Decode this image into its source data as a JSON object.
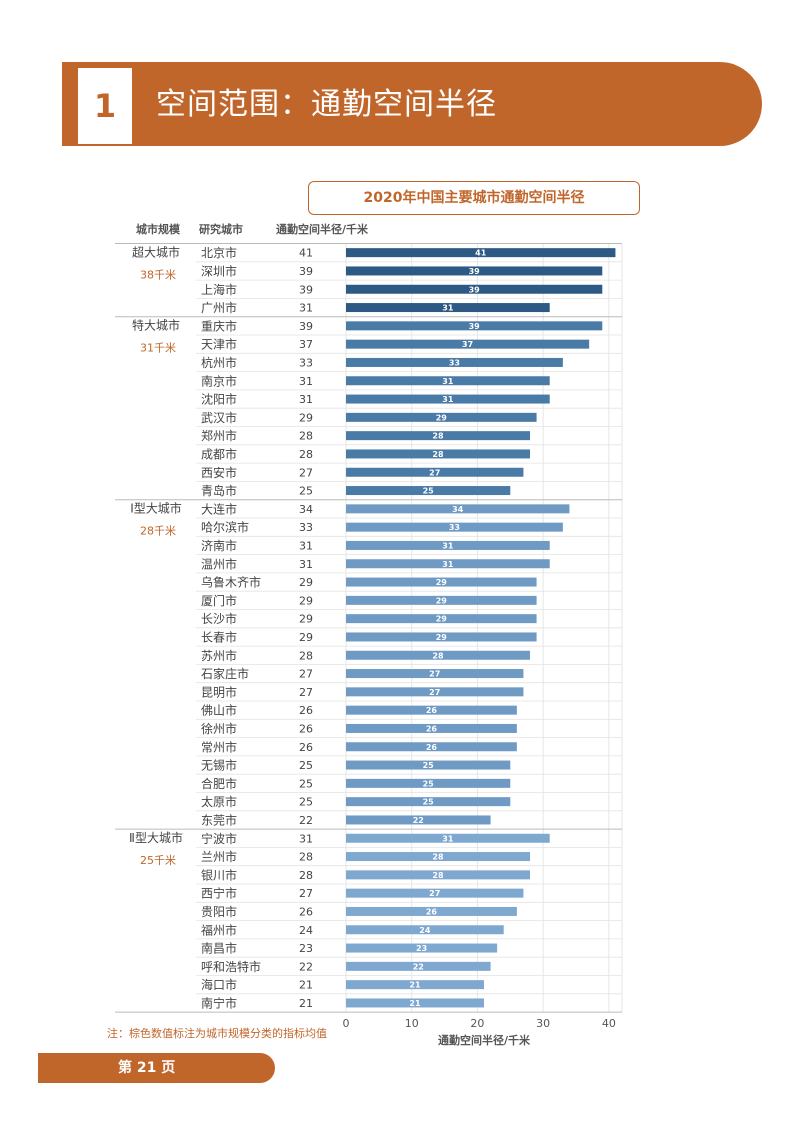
{
  "section": {
    "number": "1",
    "title": "空间范围：通勤空间半径"
  },
  "chart_title": "2020年中国主要城市通勤空间半径",
  "note": "注：棕色数值标注为城市规模分类的指标均值",
  "footer": "第 21 页",
  "colors": {
    "accent": "#c0662b",
    "super_large": "#2d5a85",
    "mega": "#4a7aa6",
    "large_1": "#6e9ac4",
    "large_2": "#7fa8d0"
  },
  "chart_data": {
    "type": "bar",
    "orientation": "horizontal",
    "column_headers": [
      "城市规模",
      "研究城市",
      "通勤空间半径/千米"
    ],
    "xlabel": "通勤空间半径/千米",
    "xlim": [
      0,
      42
    ],
    "xticks": [
      0,
      10,
      20,
      30,
      40
    ],
    "groups": [
      {
        "name": "超大城市",
        "mean_label": "38千米",
        "cities": [
          "北京市",
          "深圳市",
          "上海市",
          "广州市"
        ],
        "values": [
          41,
          39,
          39,
          31
        ]
      },
      {
        "name": "特大城市",
        "mean_label": "31千米",
        "cities": [
          "重庆市",
          "天津市",
          "杭州市",
          "南京市",
          "沈阳市",
          "武汉市",
          "郑州市",
          "成都市",
          "西安市",
          "青岛市"
        ],
        "values": [
          39,
          37,
          33,
          31,
          31,
          29,
          28,
          28,
          27,
          25
        ]
      },
      {
        "name": "Ⅰ型大城市",
        "mean_label": "28千米",
        "cities": [
          "大连市",
          "哈尔滨市",
          "济南市",
          "温州市",
          "乌鲁木齐市",
          "厦门市",
          "长沙市",
          "长春市",
          "苏州市",
          "石家庄市",
          "昆明市",
          "佛山市",
          "徐州市",
          "常州市",
          "无锡市",
          "合肥市",
          "太原市",
          "东莞市"
        ],
        "values": [
          34,
          33,
          31,
          31,
          29,
          29,
          29,
          29,
          28,
          27,
          27,
          26,
          26,
          26,
          25,
          25,
          25,
          22
        ]
      },
      {
        "name": "Ⅱ型大城市",
        "mean_label": "25千米",
        "cities": [
          "宁波市",
          "兰州市",
          "银川市",
          "西宁市",
          "贵阳市",
          "福州市",
          "南昌市",
          "呼和浩特市",
          "海口市",
          "南宁市"
        ],
        "values": [
          31,
          28,
          28,
          27,
          26,
          24,
          23,
          22,
          21,
          21
        ]
      }
    ]
  }
}
